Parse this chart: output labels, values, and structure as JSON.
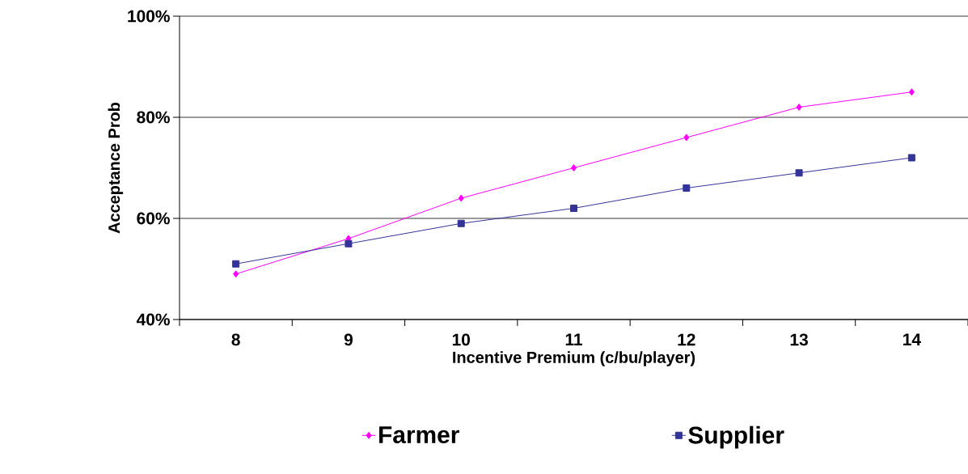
{
  "chart_data": {
    "type": "line",
    "xlabel": "Incentive Premium (c/bu/player)",
    "ylabel": "Acceptance Prob",
    "categories": [
      "8",
      "9",
      "10",
      "11",
      "12",
      "13",
      "14"
    ],
    "series": [
      {
        "name": "Farmer",
        "color": "#ff00ff",
        "marker": "diamond",
        "values": [
          49,
          56,
          64,
          70,
          76,
          82,
          85
        ]
      },
      {
        "name": "Supplier",
        "color": "#333399",
        "marker": "square",
        "values": [
          51,
          55,
          59,
          62,
          66,
          69,
          72
        ]
      }
    ],
    "ylim": [
      40,
      100
    ],
    "yticks": [
      {
        "value": 40,
        "label": "40%"
      },
      {
        "value": 60,
        "label": "60%"
      },
      {
        "value": 80,
        "label": "80%"
      },
      {
        "value": 100,
        "label": "100%"
      }
    ],
    "grid": "y",
    "legend": "bottom",
    "line_style": "solid"
  }
}
